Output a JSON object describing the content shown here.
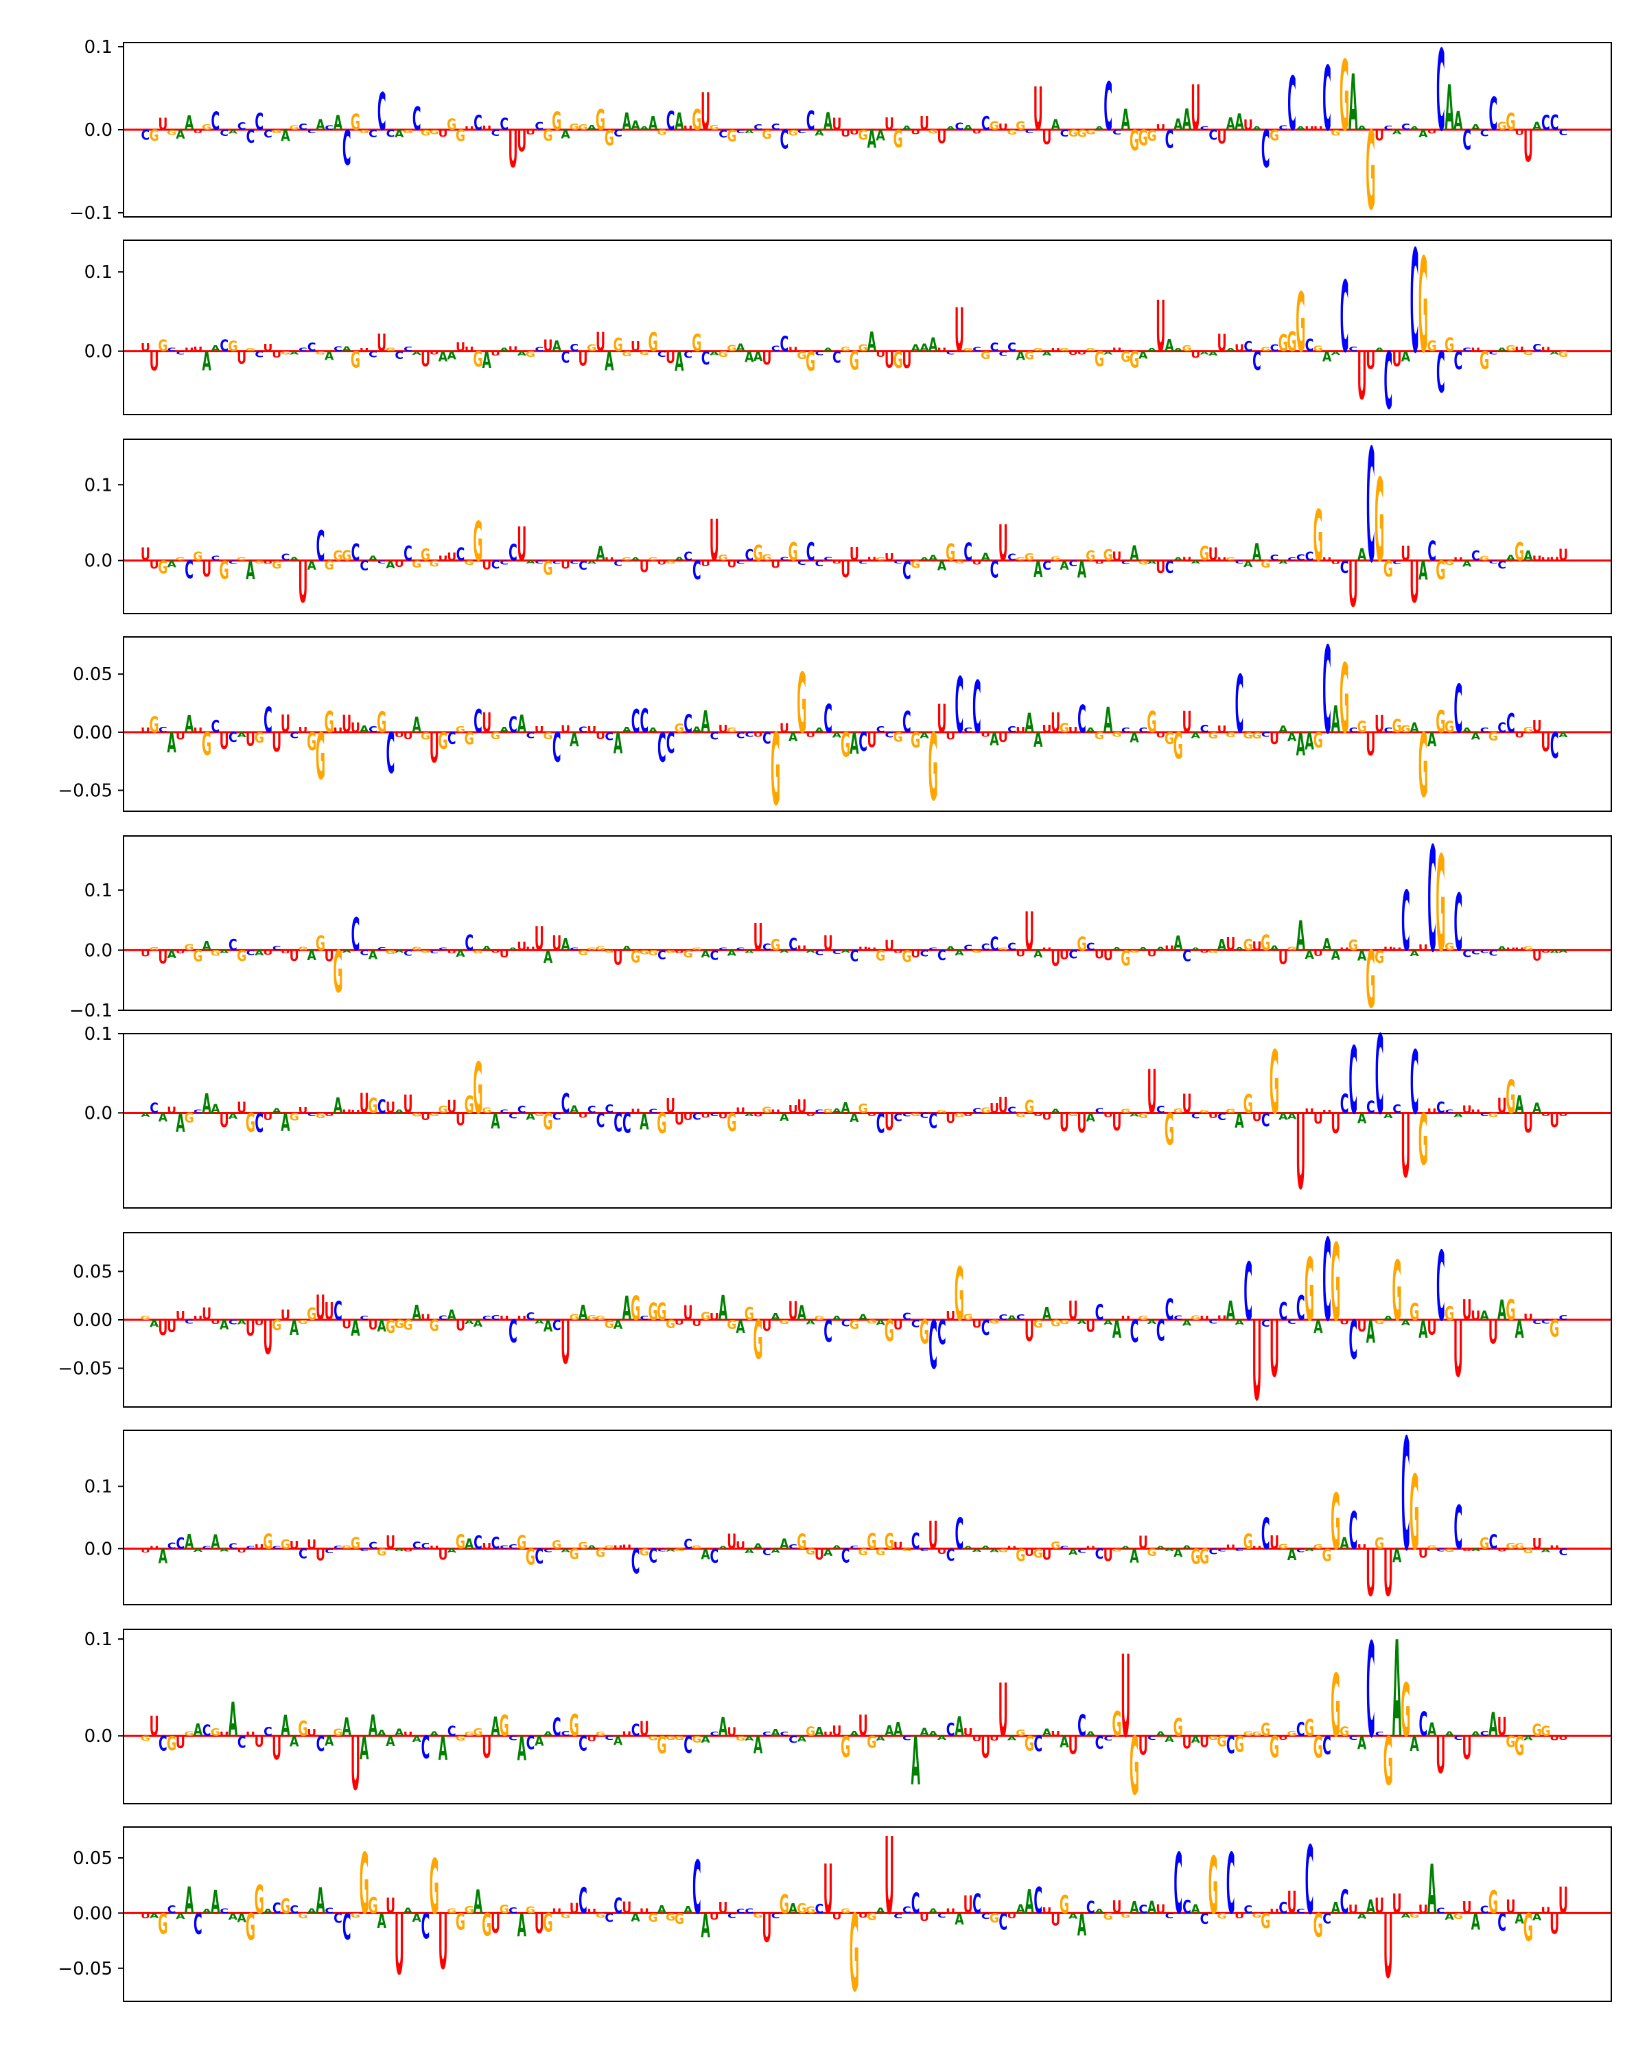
{
  "figure": {
    "description_free": true
  },
  "chart_data": {
    "type": "sequence_logo",
    "alphabet": [
      "A",
      "C",
      "G",
      "U"
    ],
    "colors": {
      "A": "#008000",
      "C": "#0000ff",
      "G": "#ffa500",
      "U": "#ff0000"
    },
    "positions": 170,
    "panels": [
      {
        "ylim": [
          -0.105,
          0.105
        ],
        "yticks": [
          -0.1,
          0.0,
          0.1
        ],
        "ytick_labels": [
          "−0.1",
          "0.0",
          "0.1"
        ],
        "peaks": [
          {
            "pos": 25,
            "letter": "C",
            "value": -0.042
          },
          {
            "pos": 29,
            "letter": "C",
            "value": 0.045
          },
          {
            "pos": 33,
            "letter": "C",
            "value": 0.028
          },
          {
            "pos": 44,
            "letter": "U",
            "value": -0.045
          },
          {
            "pos": 66,
            "letter": "U",
            "value": 0.045
          },
          {
            "pos": 104,
            "letter": "U",
            "value": 0.052
          },
          {
            "pos": 112,
            "letter": "C",
            "value": 0.058
          },
          {
            "pos": 122,
            "letter": "U",
            "value": 0.055
          },
          {
            "pos": 130,
            "letter": "C",
            "value": -0.045
          },
          {
            "pos": 133,
            "letter": "C",
            "value": 0.065
          },
          {
            "pos": 137,
            "letter": "C",
            "value": 0.078
          },
          {
            "pos": 139,
            "letter": "G",
            "value": 0.085
          },
          {
            "pos": 140,
            "letter": "A",
            "value": 0.068
          },
          {
            "pos": 142,
            "letter": "G",
            "value": -0.095
          },
          {
            "pos": 150,
            "letter": "C",
            "value": 0.098
          },
          {
            "pos": 151,
            "letter": "A",
            "value": 0.055
          },
          {
            "pos": 156,
            "letter": "C",
            "value": 0.04
          },
          {
            "pos": 160,
            "letter": "U",
            "value": -0.038
          }
        ]
      },
      {
        "ylim": [
          -0.08,
          0.14
        ],
        "yticks": [
          0.0,
          0.1
        ],
        "ytick_labels": [
          "0.0",
          "0.1"
        ],
        "peaks": [
          {
            "pos": 95,
            "letter": "U",
            "value": 0.055
          },
          {
            "pos": 118,
            "letter": "U",
            "value": 0.065
          },
          {
            "pos": 134,
            "letter": "G",
            "value": 0.075
          },
          {
            "pos": 139,
            "letter": "C",
            "value": 0.09
          },
          {
            "pos": 141,
            "letter": "U",
            "value": -0.06
          },
          {
            "pos": 144,
            "letter": "C",
            "value": -0.072
          },
          {
            "pos": 147,
            "letter": "C",
            "value": 0.13
          },
          {
            "pos": 148,
            "letter": "G",
            "value": 0.12
          },
          {
            "pos": 150,
            "letter": "C",
            "value": -0.052
          }
        ]
      },
      {
        "ylim": [
          -0.07,
          0.16
        ],
        "yticks": [
          0.0,
          0.1
        ],
        "ytick_labels": [
          "0.0",
          "0.1"
        ],
        "peaks": [
          {
            "pos": 20,
            "letter": "U",
            "value": -0.055
          },
          {
            "pos": 22,
            "letter": "C",
            "value": 0.04
          },
          {
            "pos": 40,
            "letter": "G",
            "value": 0.052
          },
          {
            "pos": 45,
            "letter": "U",
            "value": 0.045
          },
          {
            "pos": 67,
            "letter": "U",
            "value": 0.055
          },
          {
            "pos": 100,
            "letter": "U",
            "value": 0.048
          },
          {
            "pos": 136,
            "letter": "G",
            "value": 0.068
          },
          {
            "pos": 140,
            "letter": "U",
            "value": -0.06
          },
          {
            "pos": 142,
            "letter": "C",
            "value": 0.15
          },
          {
            "pos": 143,
            "letter": "G",
            "value": 0.11
          },
          {
            "pos": 147,
            "letter": "U",
            "value": -0.055
          }
        ]
      },
      {
        "ylim": [
          -0.068,
          0.082
        ],
        "yticks": [
          -0.05,
          0.0,
          0.05
        ],
        "ytick_labels": [
          "−0.05",
          "0.00",
          "0.05"
        ],
        "peaks": [
          {
            "pos": 22,
            "letter": "G",
            "value": -0.04
          },
          {
            "pos": 30,
            "letter": "C",
            "value": -0.035
          },
          {
            "pos": 74,
            "letter": "G",
            "value": -0.062
          },
          {
            "pos": 77,
            "letter": "G",
            "value": 0.052
          },
          {
            "pos": 92,
            "letter": "G",
            "value": -0.058
          },
          {
            "pos": 95,
            "letter": "C",
            "value": 0.048
          },
          {
            "pos": 97,
            "letter": "C",
            "value": 0.045
          },
          {
            "pos": 127,
            "letter": "C",
            "value": 0.05
          },
          {
            "pos": 137,
            "letter": "C",
            "value": 0.075
          },
          {
            "pos": 139,
            "letter": "G",
            "value": 0.06
          },
          {
            "pos": 148,
            "letter": "G",
            "value": -0.055
          },
          {
            "pos": 152,
            "letter": "C",
            "value": 0.042
          }
        ]
      },
      {
        "ylim": [
          -0.1,
          0.19
        ],
        "yticks": [
          -0.1,
          0.0,
          0.1
        ],
        "ytick_labels": [
          "−0.1",
          "0.0",
          "0.1"
        ],
        "peaks": [
          {
            "pos": 24,
            "letter": "G",
            "value": -0.07
          },
          {
            "pos": 26,
            "letter": "C",
            "value": 0.055
          },
          {
            "pos": 47,
            "letter": "U",
            "value": 0.04
          },
          {
            "pos": 72,
            "letter": "U",
            "value": 0.045
          },
          {
            "pos": 103,
            "letter": "U",
            "value": 0.065
          },
          {
            "pos": 134,
            "letter": "A",
            "value": 0.05
          },
          {
            "pos": 142,
            "letter": "G",
            "value": -0.095
          },
          {
            "pos": 146,
            "letter": "C",
            "value": 0.1
          },
          {
            "pos": 149,
            "letter": "C",
            "value": 0.175
          },
          {
            "pos": 150,
            "letter": "G",
            "value": 0.16
          },
          {
            "pos": 152,
            "letter": "C",
            "value": 0.095
          }
        ]
      },
      {
        "ylim": [
          -0.12,
          0.1
        ],
        "yticks": [
          0.0,
          0.1
        ],
        "ytick_labels": [
          "0.0",
          "0.1"
        ],
        "peaks": [
          {
            "pos": 40,
            "letter": "G",
            "value": 0.065
          },
          {
            "pos": 86,
            "letter": "C",
            "value": -0.025
          },
          {
            "pos": 117,
            "letter": "U",
            "value": 0.055
          },
          {
            "pos": 119,
            "letter": "G",
            "value": -0.04
          },
          {
            "pos": 131,
            "letter": "G",
            "value": 0.08
          },
          {
            "pos": 134,
            "letter": "U",
            "value": -0.095
          },
          {
            "pos": 140,
            "letter": "C",
            "value": 0.085
          },
          {
            "pos": 143,
            "letter": "C",
            "value": 0.1
          },
          {
            "pos": 146,
            "letter": "U",
            "value": -0.08
          },
          {
            "pos": 147,
            "letter": "C",
            "value": 0.08
          },
          {
            "pos": 148,
            "letter": "G",
            "value": -0.065
          },
          {
            "pos": 158,
            "letter": "G",
            "value": 0.042
          }
        ]
      },
      {
        "ylim": [
          -0.09,
          0.09
        ],
        "yticks": [
          -0.05,
          0.0,
          0.05
        ],
        "ytick_labels": [
          "−0.05",
          "0.00",
          "0.05"
        ],
        "peaks": [
          {
            "pos": 16,
            "letter": "U",
            "value": -0.035
          },
          {
            "pos": 50,
            "letter": "U",
            "value": -0.045
          },
          {
            "pos": 72,
            "letter": "G",
            "value": -0.04
          },
          {
            "pos": 92,
            "letter": "C",
            "value": -0.05
          },
          {
            "pos": 95,
            "letter": "G",
            "value": 0.055
          },
          {
            "pos": 128,
            "letter": "C",
            "value": 0.06
          },
          {
            "pos": 129,
            "letter": "U",
            "value": -0.082
          },
          {
            "pos": 131,
            "letter": "U",
            "value": -0.058
          },
          {
            "pos": 135,
            "letter": "G",
            "value": 0.065
          },
          {
            "pos": 137,
            "letter": "C",
            "value": 0.085
          },
          {
            "pos": 138,
            "letter": "G",
            "value": 0.08
          },
          {
            "pos": 140,
            "letter": "C",
            "value": -0.04
          },
          {
            "pos": 145,
            "letter": "G",
            "value": 0.062
          },
          {
            "pos": 150,
            "letter": "C",
            "value": 0.072
          },
          {
            "pos": 152,
            "letter": "U",
            "value": -0.058
          }
        ]
      },
      {
        "ylim": [
          -0.09,
          0.19
        ],
        "yticks": [
          0.0,
          0.1
        ],
        "ytick_labels": [
          "0.0",
          "0.1"
        ],
        "peaks": [
          {
            "pos": 58,
            "letter": "C",
            "value": -0.04
          },
          {
            "pos": 92,
            "letter": "U",
            "value": 0.045
          },
          {
            "pos": 95,
            "letter": "C",
            "value": 0.05
          },
          {
            "pos": 130,
            "letter": "C",
            "value": 0.05
          },
          {
            "pos": 138,
            "letter": "G",
            "value": 0.09
          },
          {
            "pos": 140,
            "letter": "C",
            "value": 0.06
          },
          {
            "pos": 142,
            "letter": "U",
            "value": -0.075
          },
          {
            "pos": 144,
            "letter": "U",
            "value": -0.075
          },
          {
            "pos": 146,
            "letter": "C",
            "value": 0.18
          },
          {
            "pos": 147,
            "letter": "G",
            "value": 0.12
          },
          {
            "pos": 152,
            "letter": "C",
            "value": 0.07
          }
        ]
      },
      {
        "ylim": [
          -0.07,
          0.11
        ],
        "yticks": [
          0.0,
          0.1
        ],
        "ytick_labels": [
          "0.0",
          "0.1"
        ],
        "peaks": [
          {
            "pos": 12,
            "letter": "A",
            "value": 0.035
          },
          {
            "pos": 26,
            "letter": "U",
            "value": -0.055
          },
          {
            "pos": 90,
            "letter": "A",
            "value": -0.05
          },
          {
            "pos": 100,
            "letter": "U",
            "value": 0.055
          },
          {
            "pos": 114,
            "letter": "U",
            "value": 0.085
          },
          {
            "pos": 115,
            "letter": "G",
            "value": -0.06
          },
          {
            "pos": 138,
            "letter": "G",
            "value": 0.065
          },
          {
            "pos": 142,
            "letter": "C",
            "value": 0.098
          },
          {
            "pos": 144,
            "letter": "G",
            "value": -0.05
          },
          {
            "pos": 145,
            "letter": "A",
            "value": 0.1
          },
          {
            "pos": 146,
            "letter": "G",
            "value": 0.055
          },
          {
            "pos": 150,
            "letter": "U",
            "value": -0.038
          }
        ]
      },
      {
        "ylim": [
          -0.08,
          0.078
        ],
        "yticks": [
          -0.05,
          0.0,
          0.05
        ],
        "ytick_labels": [
          "−0.05",
          "0.00",
          "0.05"
        ],
        "peaks": [
          {
            "pos": 27,
            "letter": "G",
            "value": 0.055
          },
          {
            "pos": 31,
            "letter": "U",
            "value": -0.055
          },
          {
            "pos": 35,
            "letter": "G",
            "value": 0.05
          },
          {
            "pos": 36,
            "letter": "U",
            "value": -0.05
          },
          {
            "pos": 65,
            "letter": "C",
            "value": 0.048
          },
          {
            "pos": 80,
            "letter": "U",
            "value": 0.045
          },
          {
            "pos": 83,
            "letter": "G",
            "value": -0.07
          },
          {
            "pos": 87,
            "letter": "U",
            "value": 0.07
          },
          {
            "pos": 120,
            "letter": "C",
            "value": 0.055
          },
          {
            "pos": 124,
            "letter": "G",
            "value": 0.052
          },
          {
            "pos": 126,
            "letter": "C",
            "value": 0.055
          },
          {
            "pos": 135,
            "letter": "C",
            "value": 0.062
          },
          {
            "pos": 144,
            "letter": "U",
            "value": -0.058
          },
          {
            "pos": 149,
            "letter": "A",
            "value": 0.045
          }
        ]
      }
    ]
  }
}
